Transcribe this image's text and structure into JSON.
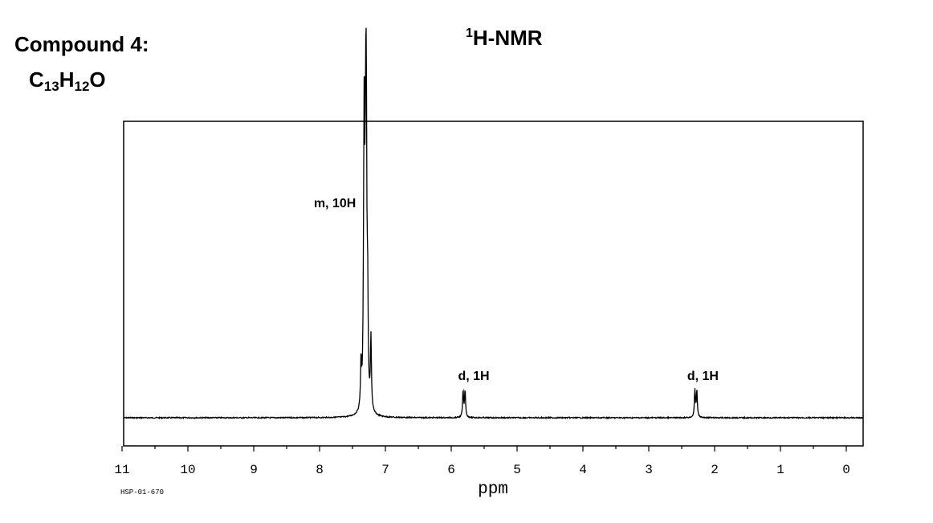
{
  "header": {
    "compound_label": "Compound 4:",
    "formula_parts": [
      "C",
      "13",
      "H",
      "12",
      "O"
    ],
    "title_sup": "1",
    "title_main": "H-NMR"
  },
  "chart_data": {
    "type": "line",
    "title": "1H-NMR",
    "xlabel": "ppm",
    "ylabel": "",
    "xlim": [
      11,
      -0.4
    ],
    "x_reversed": true,
    "x_ticks": [
      11,
      10,
      9,
      8,
      7,
      6,
      5,
      4,
      3,
      2,
      1,
      0
    ],
    "grid": false,
    "footnote": "HSP-01-670",
    "series": [
      {
        "peaks": [
          {
            "x": 7.37,
            "height": 0.17
          },
          {
            "x": 7.33,
            "height": 0.34
          },
          {
            "x": 7.32,
            "height": 0.97
          },
          {
            "x": 7.3,
            "height": 0.73
          },
          {
            "x": 7.29,
            "height": 0.9
          },
          {
            "x": 7.27,
            "height": 0.38
          },
          {
            "x": 7.22,
            "height": 0.27
          },
          {
            "x": 5.82,
            "height": 0.1
          },
          {
            "x": 5.79,
            "height": 0.1
          },
          {
            "x": 2.3,
            "height": 0.1
          },
          {
            "x": 2.27,
            "height": 0.1
          }
        ]
      }
    ],
    "annotations": [
      {
        "text": "m, 10H",
        "x": 7.35,
        "y": 0.78
      },
      {
        "text": "d, 1H",
        "x": 5.78,
        "y": 0.14
      },
      {
        "text": "d, 1H",
        "x": 2.3,
        "y": 0.14
      }
    ]
  }
}
